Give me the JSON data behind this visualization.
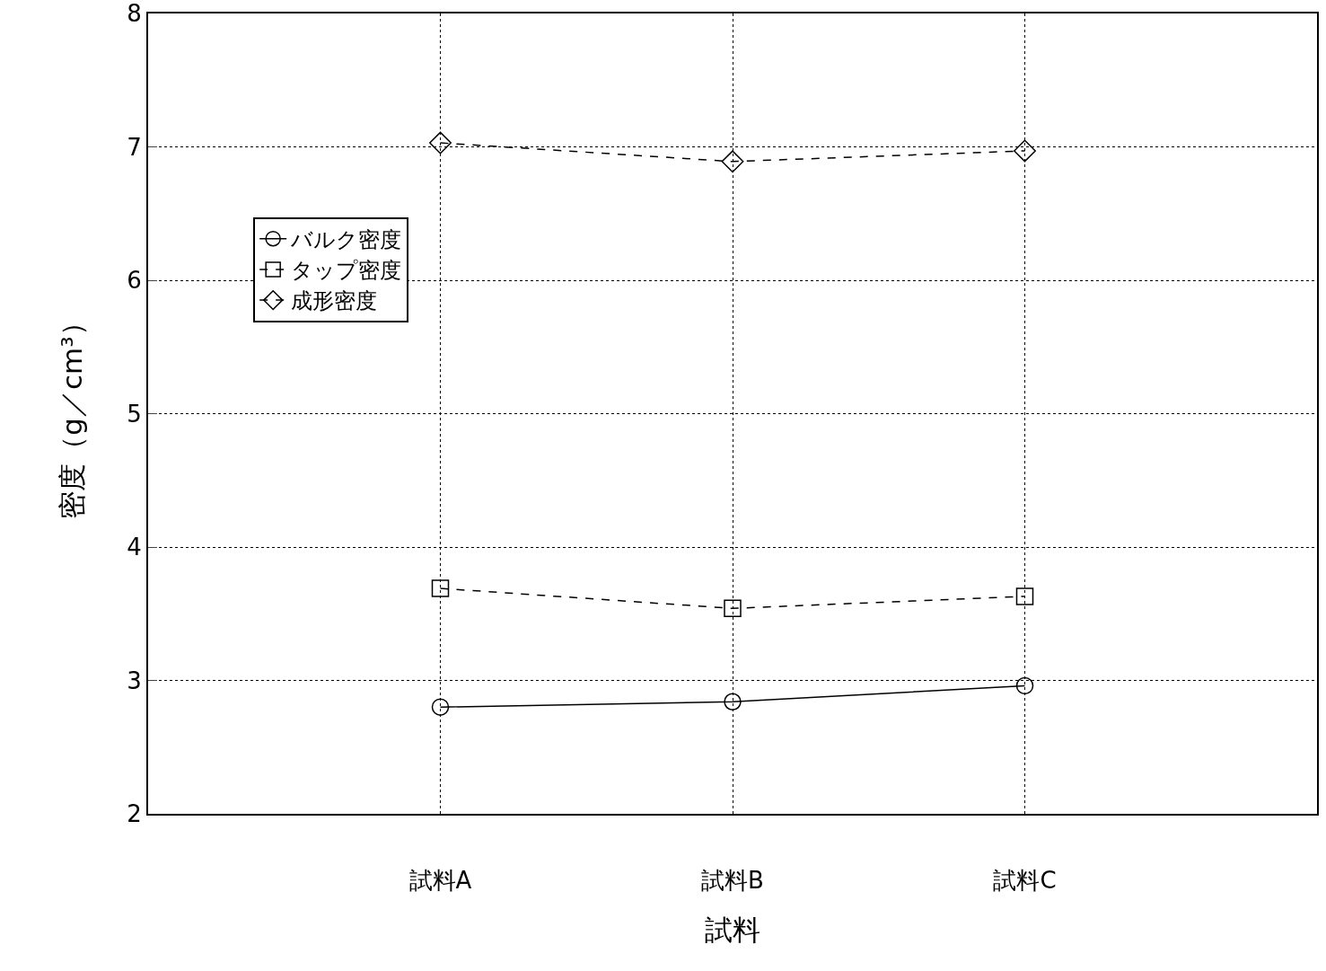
{
  "chart_data": {
    "type": "line",
    "xlabel": "試料",
    "ylabel": "密度（g／cm³）",
    "categories": [
      "試料A",
      "試料B",
      "試料C"
    ],
    "series": [
      {
        "name": "バルク密度",
        "color": "#000000",
        "marker": "circle",
        "line_style": "solid",
        "values": [
          2.8,
          2.84,
          2.96
        ]
      },
      {
        "name": "タップ密度",
        "color": "#000000",
        "marker": "square",
        "line_style": "dashed",
        "values": [
          3.69,
          3.54,
          3.63
        ]
      },
      {
        "name": "成形密度",
        "color": "#000000",
        "marker": "diamond",
        "line_style": "dashed",
        "values": [
          7.03,
          6.89,
          6.97
        ]
      }
    ],
    "ylim": [
      2,
      8
    ],
    "yticks": [
      2,
      3,
      4,
      5,
      6,
      7,
      8
    ],
    "grid": true,
    "legend": "left"
  }
}
